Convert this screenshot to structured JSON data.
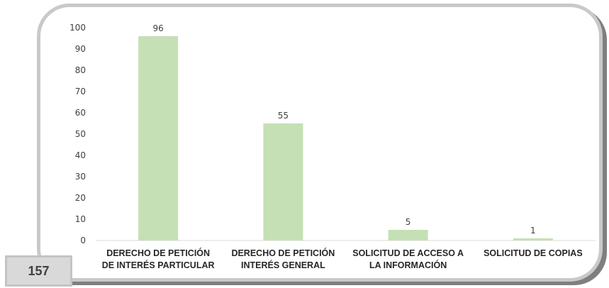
{
  "page_number": "157",
  "colors": {
    "bar": "#c5e0b4",
    "frame_border": "#c9c9c9",
    "frame_shadow": "#7f7f7f",
    "axis": "#d9d9d9"
  },
  "chart_data": {
    "type": "bar",
    "title": "",
    "xlabel": "",
    "ylabel": "",
    "ylim": [
      0,
      100
    ],
    "yticks": [
      0,
      10,
      20,
      30,
      40,
      50,
      60,
      70,
      80,
      90,
      100
    ],
    "grid": false,
    "categories": [
      [
        "DERECHO DE PETICIÓN",
        "DE INTERÉS PARTICULAR"
      ],
      [
        "DERECHO DE PETICIÓN",
        "INTERÉS GENERAL"
      ],
      [
        "SOLICITUD DE ACCESO A",
        "LA INFORMACIÓN"
      ],
      [
        "SOLICITUD DE COPIAS"
      ]
    ],
    "values": [
      96,
      55,
      5,
      1
    ],
    "data_labels": [
      "96",
      "55",
      "5",
      "1"
    ]
  }
}
